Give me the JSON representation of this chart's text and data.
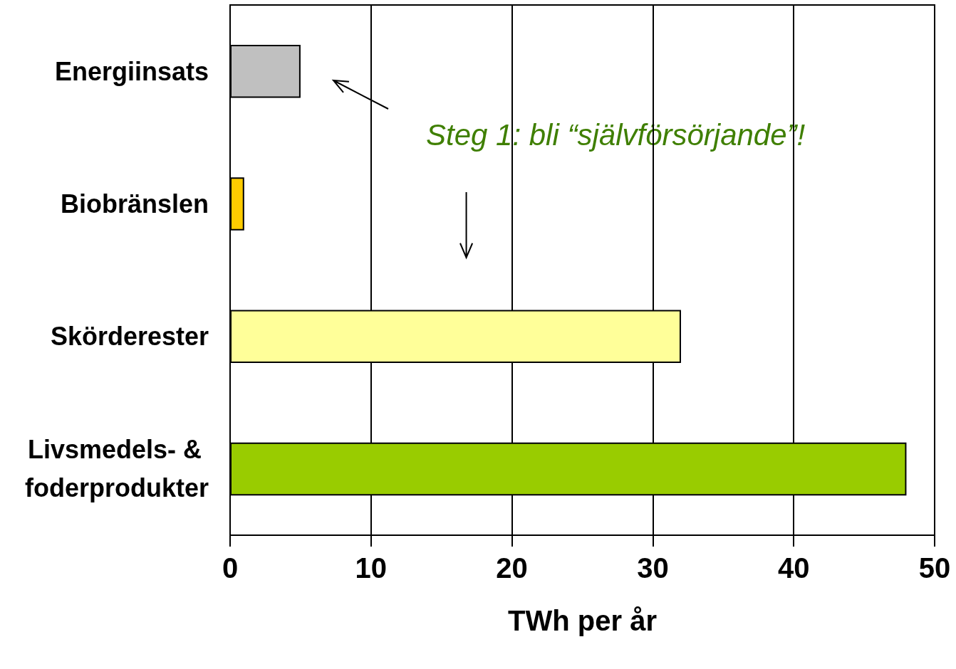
{
  "chart_data": {
    "type": "bar",
    "orientation": "horizontal",
    "categories": [
      "Energiinsats",
      "Biobränslen",
      "Skörderester",
      "Livsmedels- & foderprodukter"
    ],
    "values": [
      5,
      1,
      32,
      48
    ],
    "colors": [
      "#c0c0c0",
      "#ffcc00",
      "#ffff99",
      "#99cc00"
    ],
    "xlim": [
      0,
      50
    ],
    "xticks": [
      0,
      10,
      20,
      30,
      40,
      50
    ],
    "grid": "x",
    "xlabel": "TWh per år",
    "annotations": [
      "Steg 1: bli “självförsörjande”!"
    ]
  }
}
